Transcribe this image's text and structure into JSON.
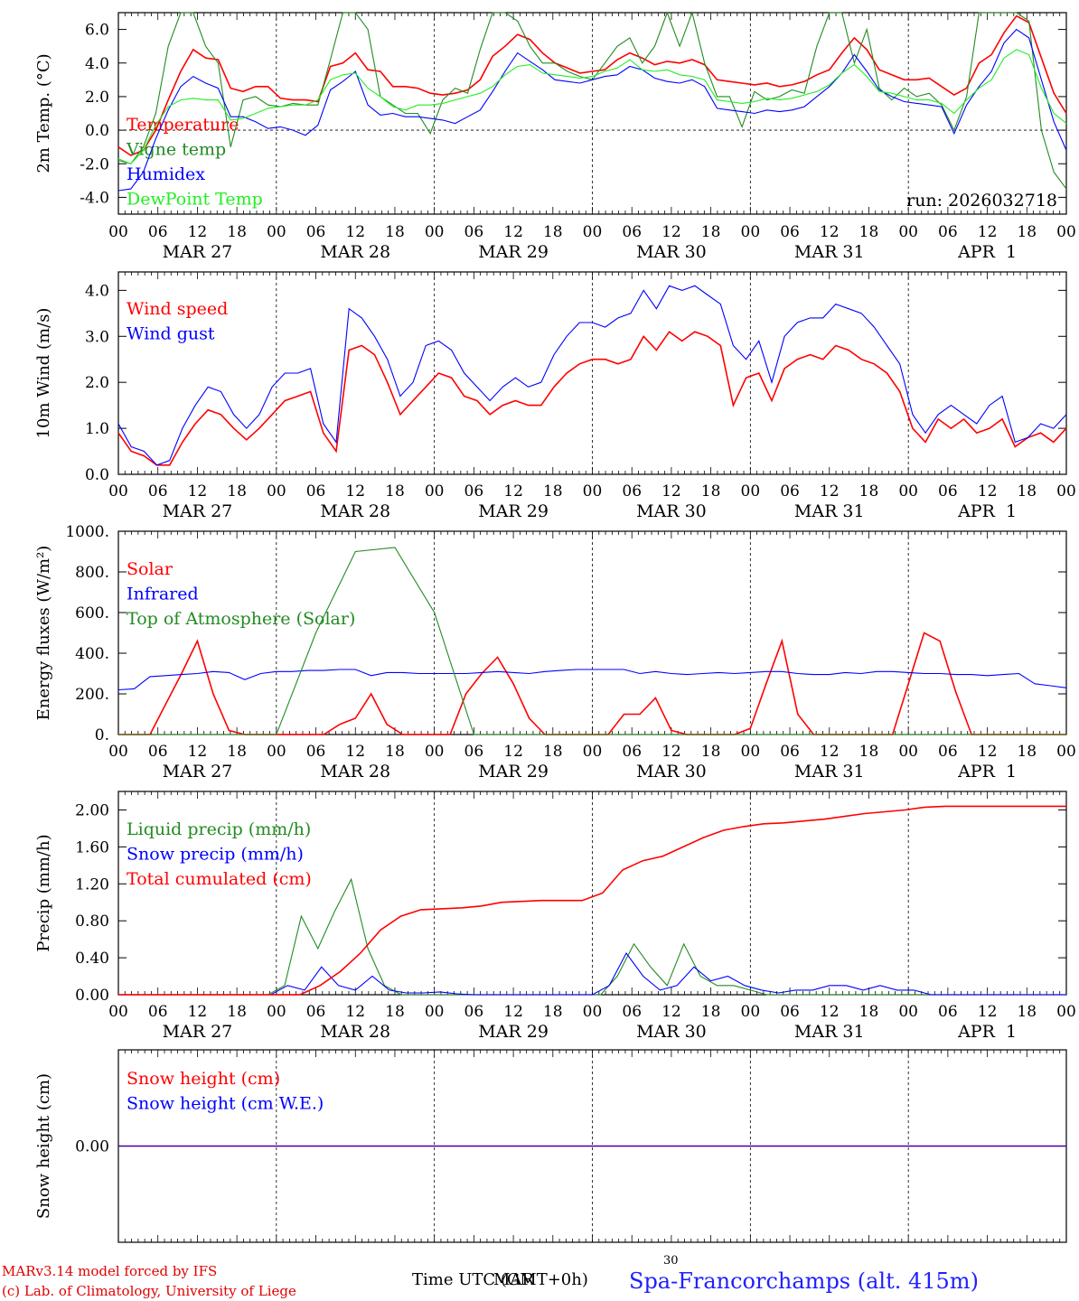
{
  "footer": {
    "model_line": "MARv3.14 model forced by IFS",
    "credit_line": "(c) Lab. of Climatology, University of Liege",
    "time_label": "Time UTC (GMT+0h)",
    "overlap_marker": "MAR",
    "center_number": "30",
    "station": "Spa-Francorchamps (alt. 415m)"
  },
  "x_axis": {
    "hour_ticks": [
      "00",
      "06",
      "12",
      "18",
      "00",
      "06",
      "12",
      "18",
      "00",
      "06",
      "12",
      "18",
      "00",
      "06",
      "12",
      "18",
      "00",
      "06",
      "12",
      "18",
      "00",
      "06",
      "12",
      "18",
      "00"
    ],
    "days": [
      "MAR 27",
      "MAR 28",
      "MAR 29",
      "MAR 30",
      "MAR 31",
      "APR  1"
    ]
  },
  "colors": {
    "red": "#ff0000",
    "green": "#228b22",
    "blue": "#0000ff",
    "lime": "#22ee22",
    "axis": "#000000"
  },
  "chart_data": [
    {
      "type": "line",
      "id": "temperature",
      "ylabel": "2m Temp. (°C)",
      "ylim": [
        -5.0,
        7.0
      ],
      "yticks": [
        -4.0,
        -2.0,
        0.0,
        2.0,
        4.0,
        6.0
      ],
      "ytick_labels": [
        "-4.0",
        "-2.0",
        "0.0",
        "2.0",
        "4.0",
        "6.0"
      ],
      "zero_line": true,
      "annotation": "run: 2026032718",
      "x_hours_step": 3,
      "series": [
        {
          "name": "Temperature",
          "color": "#ff0000",
          "values": [
            -1.0,
            -1.5,
            -1.2,
            0.0,
            1.8,
            3.5,
            4.8,
            4.3,
            4.2,
            2.5,
            2.3,
            2.6,
            2.6,
            1.9,
            1.8,
            1.8,
            1.7,
            3.8,
            4.0,
            4.6,
            3.6,
            3.5,
            2.6,
            2.6,
            2.5,
            2.2,
            2.1,
            2.2,
            2.4,
            3.0,
            4.4,
            5.0,
            5.7,
            5.4,
            4.6,
            4.0,
            3.7,
            3.4,
            3.5,
            3.6,
            4.2,
            4.6,
            4.3,
            3.9,
            4.1,
            4.0,
            4.2,
            3.9,
            3.0,
            2.9,
            2.8,
            2.7,
            2.8,
            2.6,
            2.7,
            2.9,
            3.3,
            3.6,
            4.6,
            5.5,
            4.8,
            3.6,
            3.3,
            3.0,
            3.0,
            3.1,
            2.6,
            2.1,
            2.5,
            4.0,
            4.5,
            5.8,
            6.8,
            6.4,
            4.3,
            2.2,
            1.0
          ]
        },
        {
          "name": "Vigne temp",
          "color": "#228b22",
          "values": [
            -1.8,
            -2.0,
            -1.0,
            1.0,
            5.0,
            7.3,
            7.3,
            5.0,
            4.0,
            -1.0,
            1.8,
            2.0,
            1.5,
            1.4,
            1.6,
            1.5,
            1.5,
            4.2,
            7.3,
            7.3,
            6.0,
            2.0,
            1.5,
            1.0,
            1.0,
            -0.2,
            1.8,
            2.5,
            2.2,
            4.8,
            7.3,
            7.3,
            6.5,
            5.0,
            4.0,
            4.0,
            3.5,
            3.2,
            3.0,
            4.0,
            5.0,
            5.5,
            4.0,
            5.0,
            7.3,
            5.0,
            7.3,
            4.0,
            2.0,
            2.0,
            0.2,
            2.3,
            1.8,
            2.0,
            2.4,
            2.2,
            5.0,
            7.3,
            7.3,
            4.0,
            6.0,
            2.5,
            1.8,
            2.5,
            2.0,
            2.2,
            1.5,
            0.0,
            2.0,
            7.3,
            7.3,
            7.3,
            7.3,
            6.5,
            0.0,
            -2.5,
            -3.5
          ]
        },
        {
          "name": "Humidex",
          "color": "#0000ff",
          "values": [
            -3.6,
            -3.5,
            -2.5,
            -0.5,
            1.2,
            2.6,
            3.2,
            2.8,
            2.5,
            0.8,
            0.8,
            0.5,
            0.1,
            0.2,
            0.0,
            -0.3,
            0.3,
            2.4,
            2.9,
            3.5,
            1.5,
            0.9,
            1.0,
            0.8,
            0.8,
            0.7,
            0.6,
            0.4,
            0.8,
            1.2,
            2.3,
            3.5,
            4.6,
            4.1,
            3.6,
            3.0,
            2.9,
            2.8,
            3.0,
            3.2,
            3.3,
            3.8,
            3.6,
            3.1,
            2.9,
            2.8,
            3.0,
            2.6,
            1.3,
            1.2,
            1.1,
            1.0,
            1.2,
            1.1,
            1.2,
            1.4,
            2.0,
            2.6,
            3.4,
            4.5,
            3.5,
            2.4,
            2.0,
            1.7,
            1.6,
            1.5,
            1.4,
            -0.2,
            1.5,
            2.6,
            3.5,
            5.2,
            6.0,
            5.5,
            3.0,
            0.5,
            -1.2
          ]
        },
        {
          "name": "DewPoint Temp",
          "color": "#22ee22",
          "values": [
            -1.7,
            -2.0,
            -1.2,
            0.3,
            1.4,
            1.8,
            1.9,
            1.8,
            1.8,
            0.6,
            0.7,
            1.0,
            1.3,
            1.4,
            1.5,
            1.5,
            1.8,
            3.0,
            3.3,
            3.4,
            2.5,
            2.0,
            1.4,
            1.2,
            1.5,
            1.5,
            1.6,
            1.8,
            2.0,
            2.2,
            2.6,
            3.3,
            3.8,
            3.9,
            3.4,
            3.3,
            3.2,
            3.1,
            3.2,
            3.5,
            3.7,
            4.2,
            3.6,
            3.5,
            3.6,
            3.3,
            3.2,
            3.0,
            1.8,
            1.7,
            1.6,
            1.7,
            1.9,
            1.8,
            1.9,
            2.1,
            2.3,
            2.7,
            3.4,
            3.9,
            3.2,
            2.3,
            2.2,
            2.0,
            1.8,
            1.8,
            1.6,
            1.0,
            1.8,
            2.5,
            3.0,
            4.3,
            4.8,
            4.5,
            2.5,
            1.0,
            0.4
          ]
        }
      ]
    },
    {
      "type": "line",
      "id": "wind",
      "ylabel": "10m Wind (m/s)",
      "ylim": [
        0.0,
        4.4
      ],
      "yticks": [
        0.0,
        1.0,
        2.0,
        3.0,
        4.0
      ],
      "ytick_labels": [
        "0.0",
        "1.0",
        "2.0",
        "3.0",
        "4.0"
      ],
      "x_hours_step": 3,
      "series": [
        {
          "name": "Wind speed",
          "color": "#ff0000",
          "values": [
            0.9,
            0.5,
            0.4,
            0.2,
            0.2,
            0.7,
            1.1,
            1.4,
            1.3,
            1.0,
            0.75,
            1.0,
            1.3,
            1.6,
            1.7,
            1.8,
            0.9,
            0.5,
            2.7,
            2.8,
            2.6,
            2.0,
            1.3,
            1.6,
            1.9,
            2.2,
            2.1,
            1.7,
            1.6,
            1.3,
            1.5,
            1.6,
            1.5,
            1.5,
            1.9,
            2.2,
            2.4,
            2.5,
            2.5,
            2.4,
            2.5,
            3.0,
            2.7,
            3.1,
            2.9,
            3.1,
            3.0,
            2.8,
            1.5,
            2.1,
            2.2,
            1.6,
            2.3,
            2.5,
            2.6,
            2.5,
            2.8,
            2.7,
            2.5,
            2.4,
            2.2,
            1.8,
            1.0,
            0.7,
            1.2,
            1.0,
            1.2,
            0.9,
            1.0,
            1.2,
            0.6,
            0.8,
            0.9,
            0.7,
            1.0
          ]
        },
        {
          "name": "Wind gust",
          "color": "#0000ff",
          "values": [
            1.1,
            0.6,
            0.5,
            0.2,
            0.3,
            1.0,
            1.5,
            1.9,
            1.8,
            1.3,
            1.0,
            1.3,
            1.9,
            2.2,
            2.2,
            2.3,
            1.1,
            0.7,
            3.6,
            3.4,
            3.0,
            2.5,
            1.7,
            2.0,
            2.8,
            2.9,
            2.7,
            2.2,
            1.9,
            1.6,
            1.9,
            2.1,
            1.9,
            2.0,
            2.6,
            3.0,
            3.3,
            3.3,
            3.2,
            3.4,
            3.5,
            4.0,
            3.6,
            4.1,
            4.0,
            4.1,
            3.9,
            3.7,
            2.8,
            2.5,
            2.9,
            2.0,
            3.0,
            3.3,
            3.4,
            3.4,
            3.7,
            3.6,
            3.5,
            3.2,
            2.8,
            2.4,
            1.3,
            0.9,
            1.3,
            1.5,
            1.3,
            1.1,
            1.5,
            1.7,
            0.7,
            0.8,
            1.1,
            1.0,
            1.3
          ]
        }
      ]
    },
    {
      "type": "line",
      "id": "energy",
      "ylabel": "Energy fluxes (W/m²)",
      "ylim": [
        0,
        1000
      ],
      "yticks": [
        0,
        200,
        400,
        600,
        800,
        1000
      ],
      "ytick_labels": [
        "0.",
        "200.",
        "400.",
        "600.",
        "800.",
        "1000."
      ],
      "x_hours_step": 3,
      "series": [
        {
          "name": "Solar",
          "color": "#ff0000",
          "values": [
            0,
            0,
            0,
            150,
            300,
            460,
            200,
            20,
            0,
            0,
            0,
            0,
            0,
            0,
            50,
            80,
            200,
            50,
            0,
            0,
            0,
            0,
            200,
            300,
            380,
            250,
            80,
            0,
            0,
            0,
            0,
            0,
            100,
            100,
            180,
            20,
            0,
            0,
            0,
            0,
            30,
            250,
            460,
            100,
            0,
            0,
            0,
            0,
            0,
            0,
            250,
            500,
            460,
            210,
            0,
            0,
            0,
            0,
            0,
            0,
            0
          ]
        },
        {
          "name": "Infrared",
          "color": "#0000ff",
          "values": [
            220,
            225,
            285,
            290,
            295,
            300,
            310,
            305,
            270,
            300,
            310,
            310,
            315,
            315,
            320,
            320,
            290,
            305,
            305,
            300,
            300,
            300,
            300,
            305,
            310,
            305,
            300,
            310,
            315,
            320,
            320,
            320,
            320,
            300,
            310,
            300,
            295,
            300,
            305,
            300,
            305,
            310,
            310,
            300,
            295,
            295,
            305,
            300,
            310,
            310,
            305,
            300,
            300,
            295,
            295,
            290,
            295,
            300,
            250,
            240,
            230
          ]
        },
        {
          "name": "Top of Atmosphere (Solar)",
          "color": "#228b22",
          "values": [
            0,
            0,
            0,
            0,
            0,
            500,
            900,
            920,
            600,
            0,
            0,
            0,
            0,
            0,
            0,
            0,
            0,
            0,
            0,
            0,
            0,
            0,
            0,
            0,
            0
          ]
        }
      ]
    },
    {
      "type": "line",
      "id": "precip",
      "ylabel": "Precip (mm/h)",
      "ylim": [
        0.0,
        2.2
      ],
      "yticks": [
        0.0,
        0.4,
        0.8,
        1.2,
        1.6,
        2.0
      ],
      "ytick_labels": [
        "0.00",
        "0.40",
        "0.80",
        "1.20",
        "1.60",
        "2.00"
      ],
      "x_hours_step": 3,
      "series": [
        {
          "name": "Liquid precip (mm/h)",
          "color": "#228b22",
          "values": [
            0,
            0,
            0,
            0,
            0,
            0,
            0,
            0,
            0,
            0,
            0.1,
            0.85,
            0.5,
            0.9,
            1.25,
            0.5,
            0.1,
            0,
            0,
            0,
            0,
            0,
            0,
            0,
            0,
            0,
            0,
            0,
            0,
            0,
            0.2,
            0.55,
            0.3,
            0.1,
            0.55,
            0.2,
            0.1,
            0.1,
            0.05,
            0,
            0,
            0,
            0,
            0,
            0,
            0,
            0,
            0,
            0,
            0,
            0,
            0,
            0,
            0,
            0,
            0,
            0,
            0
          ]
        },
        {
          "name": "Snow precip (mm/h)",
          "color": "#0000ff",
          "values": [
            0,
            0,
            0,
            0,
            0,
            0,
            0,
            0,
            0,
            0,
            0.1,
            0.05,
            0.3,
            0.1,
            0.05,
            0.2,
            0.05,
            0.02,
            0.02,
            0.03,
            0.01,
            0,
            0,
            0,
            0,
            0,
            0,
            0,
            0,
            0.1,
            0.45,
            0.2,
            0.05,
            0.1,
            0.3,
            0.15,
            0.2,
            0.1,
            0.05,
            0.02,
            0.05,
            0.05,
            0.1,
            0.1,
            0.05,
            0.1,
            0.05,
            0.05,
            0,
            0,
            0,
            0,
            0,
            0,
            0,
            0,
            0
          ]
        },
        {
          "name": "Total cumulated (cm)",
          "color": "#ff0000",
          "values": [
            0,
            0,
            0,
            0,
            0,
            0,
            0,
            0,
            0,
            0,
            0.1,
            0.25,
            0.45,
            0.7,
            0.85,
            0.92,
            0.93,
            0.94,
            0.96,
            1.0,
            1.01,
            1.02,
            1.02,
            1.02,
            1.1,
            1.35,
            1.45,
            1.5,
            1.6,
            1.7,
            1.78,
            1.82,
            1.85,
            1.86,
            1.88,
            1.9,
            1.93,
            1.96,
            1.98,
            2.0,
            2.03,
            2.04,
            2.04,
            2.04,
            2.04,
            2.04,
            2.04,
            2.04
          ]
        }
      ]
    },
    {
      "type": "line",
      "id": "snow",
      "ylabel": "Snow height (cm)",
      "ylim": [
        -1.0,
        1.0
      ],
      "yticks": [
        0.0
      ],
      "ytick_labels": [
        "0.00"
      ],
      "x_hours_step": 3,
      "series": [
        {
          "name": "Snow height (cm)",
          "color": "#ff0000",
          "values": [
            0,
            0
          ]
        },
        {
          "name": "Snow height (cm W.E.)",
          "color": "#0000ff",
          "values": [
            0,
            0
          ]
        }
      ]
    }
  ]
}
